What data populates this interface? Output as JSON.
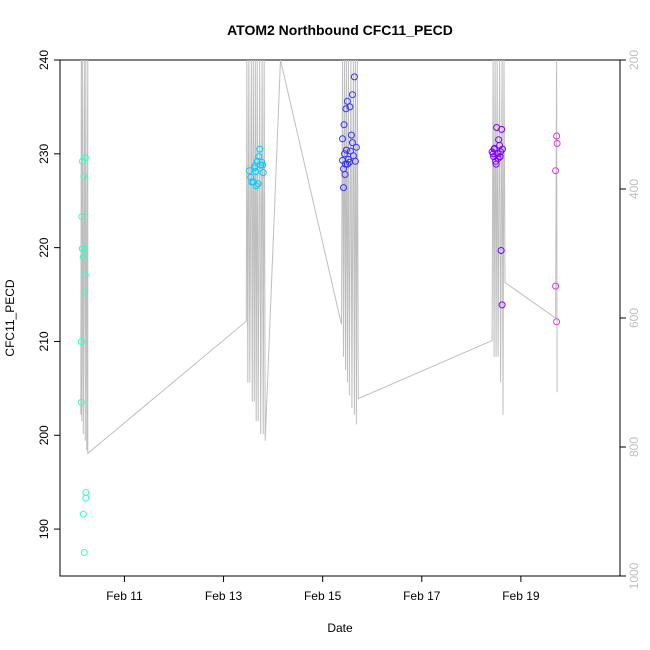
{
  "chart_data": {
    "type": "scatter",
    "title": "ATOM2 Northbound CFC11_PECD",
    "xlabel": "Date",
    "ylabel": "CFC11_PECD",
    "x_tick_labels": [
      "Feb 11",
      "Feb 13",
      "Feb 15",
      "Feb 17",
      "Feb 19"
    ],
    "x_tick_values": [
      11,
      13,
      15,
      17,
      19
    ],
    "x_unit": "day of February",
    "xlim": [
      9.7,
      21.0
    ],
    "ylim": [
      185,
      240
    ],
    "y_ticks": [
      190,
      200,
      210,
      220,
      230,
      240
    ],
    "y2_label": "",
    "y2_ticks": [
      200,
      400,
      600,
      800,
      1000
    ],
    "y2_lim": [
      1000,
      200
    ],
    "grid": false,
    "legend": "none",
    "series": [
      {
        "color": "#33ffcc",
        "points": [
          [
            10.15,
            229.2
          ],
          [
            10.21,
            229.6
          ],
          [
            10.18,
            227.6
          ],
          [
            10.14,
            223.3
          ],
          [
            10.15,
            219.9
          ],
          [
            10.2,
            219.9
          ],
          [
            10.17,
            219.0
          ],
          [
            10.21,
            217.1
          ],
          [
            10.19,
            215.3
          ],
          [
            10.13,
            210.0
          ],
          [
            10.13,
            203.5
          ],
          [
            10.22,
            193.9
          ],
          [
            10.22,
            193.3
          ],
          [
            10.17,
            191.6
          ],
          [
            10.19,
            187.5
          ]
        ]
      },
      {
        "color": "#00ccff",
        "points": [
          [
            13.52,
            228.2
          ],
          [
            13.55,
            227.5
          ],
          [
            13.57,
            227.0
          ],
          [
            13.6,
            227.0
          ],
          [
            13.62,
            228.5
          ],
          [
            13.65,
            228.1
          ],
          [
            13.68,
            229.2
          ],
          [
            13.71,
            229.7
          ],
          [
            13.73,
            230.5
          ],
          [
            13.75,
            228.8
          ],
          [
            13.77,
            229.1
          ],
          [
            13.79,
            228.8
          ],
          [
            13.7,
            226.8
          ],
          [
            13.66,
            226.6
          ],
          [
            13.8,
            228.0
          ],
          [
            13.63,
            228.7
          ]
        ]
      },
      {
        "color": "#3333ff",
        "points": [
          [
            15.4,
            231.6
          ],
          [
            15.43,
            233.1
          ],
          [
            15.47,
            234.8
          ],
          [
            15.5,
            235.6
          ],
          [
            15.55,
            235.0
          ],
          [
            15.6,
            236.3
          ],
          [
            15.64,
            238.2
          ],
          [
            15.58,
            232.0
          ],
          [
            15.68,
            230.7
          ],
          [
            15.4,
            229.3
          ],
          [
            15.44,
            230.0
          ],
          [
            15.46,
            228.9
          ],
          [
            15.48,
            230.4
          ],
          [
            15.52,
            229.4
          ],
          [
            15.56,
            230.3
          ],
          [
            15.62,
            229.8
          ],
          [
            15.66,
            229.2
          ],
          [
            15.42,
            228.4
          ],
          [
            15.5,
            228.9
          ],
          [
            15.54,
            229.1
          ],
          [
            15.45,
            227.8
          ],
          [
            15.42,
            226.4
          ],
          [
            15.6,
            231.2
          ]
        ]
      },
      {
        "color": "#7f00ff",
        "points": [
          [
            18.42,
            230.2
          ],
          [
            18.45,
            229.7
          ],
          [
            18.47,
            230.6
          ],
          [
            18.49,
            229.2
          ],
          [
            18.51,
            232.8
          ],
          [
            18.53,
            230.0
          ],
          [
            18.55,
            231.5
          ],
          [
            18.57,
            230.9
          ],
          [
            18.59,
            230.2
          ],
          [
            18.61,
            232.6
          ],
          [
            18.63,
            230.5
          ],
          [
            18.46,
            230.5
          ],
          [
            18.5,
            228.9
          ],
          [
            18.54,
            229.5
          ],
          [
            18.58,
            229.7
          ],
          [
            18.6,
            219.7
          ],
          [
            18.62,
            213.9
          ],
          [
            18.44,
            230.0
          ]
        ]
      },
      {
        "color": "#e033e0",
        "points": [
          [
            19.7,
            228.2
          ],
          [
            19.72,
            231.9
          ],
          [
            19.73,
            231.1
          ],
          [
            19.7,
            215.9
          ],
          [
            19.72,
            212.1
          ]
        ]
      }
    ],
    "altitude_trace": {
      "color": "#bebebe",
      "axis": "y2",
      "points": [
        [
          10.12,
          750
        ],
        [
          10.13,
          200
        ],
        [
          10.14,
          760
        ],
        [
          10.15,
          200
        ],
        [
          10.17,
          780
        ],
        [
          10.19,
          200
        ],
        [
          10.21,
          790
        ],
        [
          10.22,
          200
        ],
        [
          10.24,
          805
        ],
        [
          10.26,
          200
        ],
        [
          10.26,
          810
        ],
        [
          13.46,
          605
        ],
        [
          13.47,
          200
        ],
        [
          13.49,
          700
        ],
        [
          13.51,
          200
        ],
        [
          13.53,
          700
        ],
        [
          13.56,
          200
        ],
        [
          13.58,
          730
        ],
        [
          13.6,
          200
        ],
        [
          13.62,
          730
        ],
        [
          13.64,
          200
        ],
        [
          13.66,
          760
        ],
        [
          13.68,
          200
        ],
        [
          13.7,
          760
        ],
        [
          13.73,
          200
        ],
        [
          13.75,
          780
        ],
        [
          13.78,
          200
        ],
        [
          13.8,
          780
        ],
        [
          13.82,
          200
        ],
        [
          13.84,
          790
        ],
        [
          14.15,
          200
        ],
        [
          15.38,
          610
        ],
        [
          15.4,
          200
        ],
        [
          15.42,
          660
        ],
        [
          15.44,
          200
        ],
        [
          15.46,
          680
        ],
        [
          15.48,
          200
        ],
        [
          15.5,
          700
        ],
        [
          15.52,
          200
        ],
        [
          15.54,
          720
        ],
        [
          15.57,
          200
        ],
        [
          15.59,
          740
        ],
        [
          15.62,
          200
        ],
        [
          15.64,
          750
        ],
        [
          15.66,
          200
        ],
        [
          15.68,
          765
        ],
        [
          15.7,
          200
        ],
        [
          15.72,
          725
        ],
        [
          18.42,
          635
        ],
        [
          18.44,
          200
        ],
        [
          18.46,
          660
        ],
        [
          18.48,
          200
        ],
        [
          18.5,
          660
        ],
        [
          18.52,
          200
        ],
        [
          18.54,
          660
        ],
        [
          18.57,
          200
        ],
        [
          18.59,
          700
        ],
        [
          18.62,
          200
        ],
        [
          18.64,
          750
        ],
        [
          18.66,
          200
        ],
        [
          18.68,
          545
        ],
        [
          19.7,
          600
        ],
        [
          19.72,
          200
        ],
        [
          19.73,
          715
        ]
      ]
    }
  }
}
